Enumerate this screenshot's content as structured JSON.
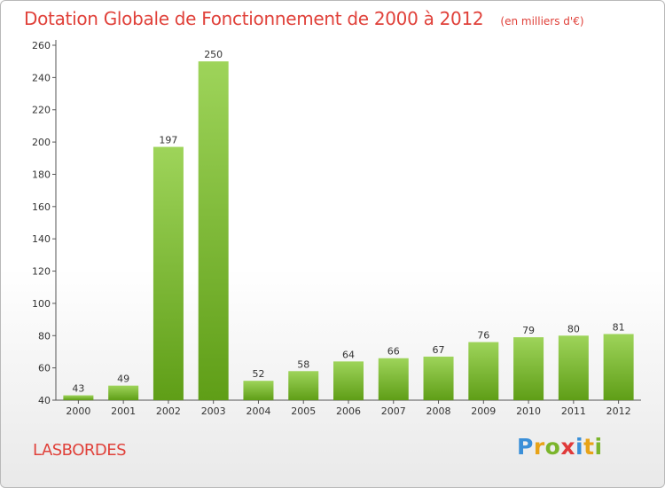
{
  "title": "Dotation Globale de Fonctionnement de 2000 à 2012",
  "subtitle": "(en milliers d'€)",
  "commune": "LASBORDES",
  "logo": {
    "text": "Proxiti",
    "letters": [
      "P",
      "r",
      "o",
      "x",
      "i",
      "t",
      "i"
    ],
    "colors": [
      "#3a8fd8",
      "#e8a317",
      "#7bb52b",
      "#e03a3a",
      "#3a8fd8",
      "#e8a317",
      "#7bb52b"
    ]
  },
  "colors": {
    "title": "#e0413a",
    "bar_light": "#9ed45a",
    "bar_dark": "#5f9e17",
    "axis": "#555555"
  },
  "chart_data": {
    "type": "bar",
    "categories": [
      "2000",
      "2001",
      "2002",
      "2003",
      "2004",
      "2005",
      "2006",
      "2007",
      "2008",
      "2009",
      "2010",
      "2011",
      "2012"
    ],
    "values": [
      43,
      49,
      197,
      250,
      52,
      58,
      64,
      66,
      67,
      76,
      79,
      80,
      81
    ],
    "data_labels": [
      "43",
      "49",
      "197",
      "250",
      "52",
      "58",
      "64",
      "66",
      "67",
      "76",
      "79",
      "80",
      "81"
    ],
    "ylim": [
      40,
      260
    ],
    "yticks": [
      40,
      60,
      80,
      100,
      120,
      140,
      160,
      180,
      200,
      220,
      240,
      260
    ],
    "grid": false,
    "xlabel": "",
    "ylabel": ""
  }
}
